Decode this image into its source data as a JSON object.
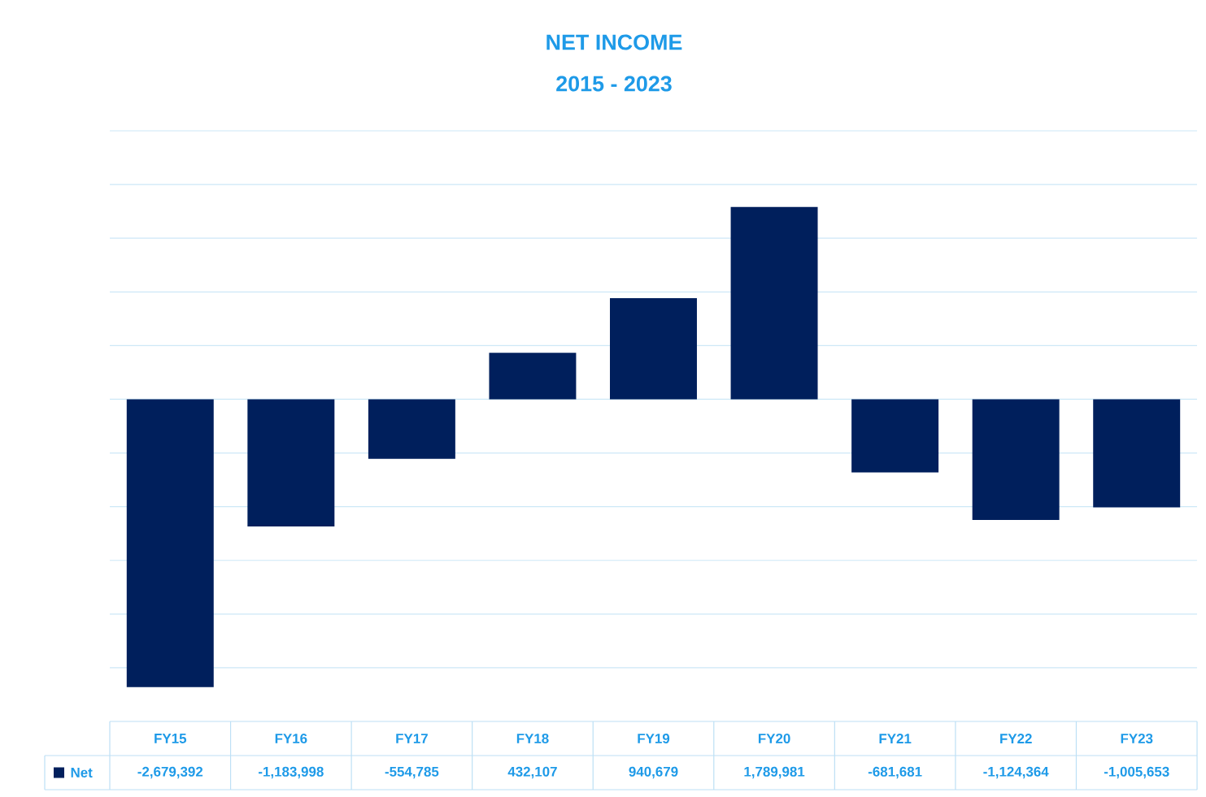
{
  "chart_data": {
    "type": "bar",
    "title": "NET INCOME",
    "subtitle": "2015 - 2023",
    "categories": [
      "FY15",
      "FY16",
      "FY17",
      "FY18",
      "FY19",
      "FY20",
      "FY21",
      "FY22",
      "FY23"
    ],
    "series": [
      {
        "name": "Net",
        "color": "#001f5c",
        "values": [
          -2679392,
          -1183998,
          -554785,
          432107,
          940679,
          1789981,
          -681681,
          -1124364,
          -1005653
        ],
        "value_labels": [
          "-2,679,392",
          "-1,183,998",
          "-554,785",
          "432,107",
          "940,679",
          "1,789,981",
          "-681,681",
          "-1,124,364",
          "-1,005,653"
        ]
      }
    ],
    "ylim": [
      -3000000,
      2500000
    ],
    "yticks": [
      {
        "value": -2500000,
        "label": null
      },
      {
        "value": -2000000,
        "label": null
      },
      {
        "value": -1500000,
        "label": null
      },
      {
        "value": -1000000,
        "label": null
      },
      {
        "value": -500000,
        "label": null
      },
      {
        "value": 0,
        "label": null
      },
      {
        "value": 500000,
        "label": null
      },
      {
        "value": 1000000,
        "label": null
      },
      {
        "value": 1500000,
        "label": null
      },
      {
        "value": 2000000,
        "label": null
      },
      {
        "value": 2500000,
        "label": null
      }
    ],
    "grid": "y",
    "tick_labels": "x",
    "legend": "bottom"
  }
}
